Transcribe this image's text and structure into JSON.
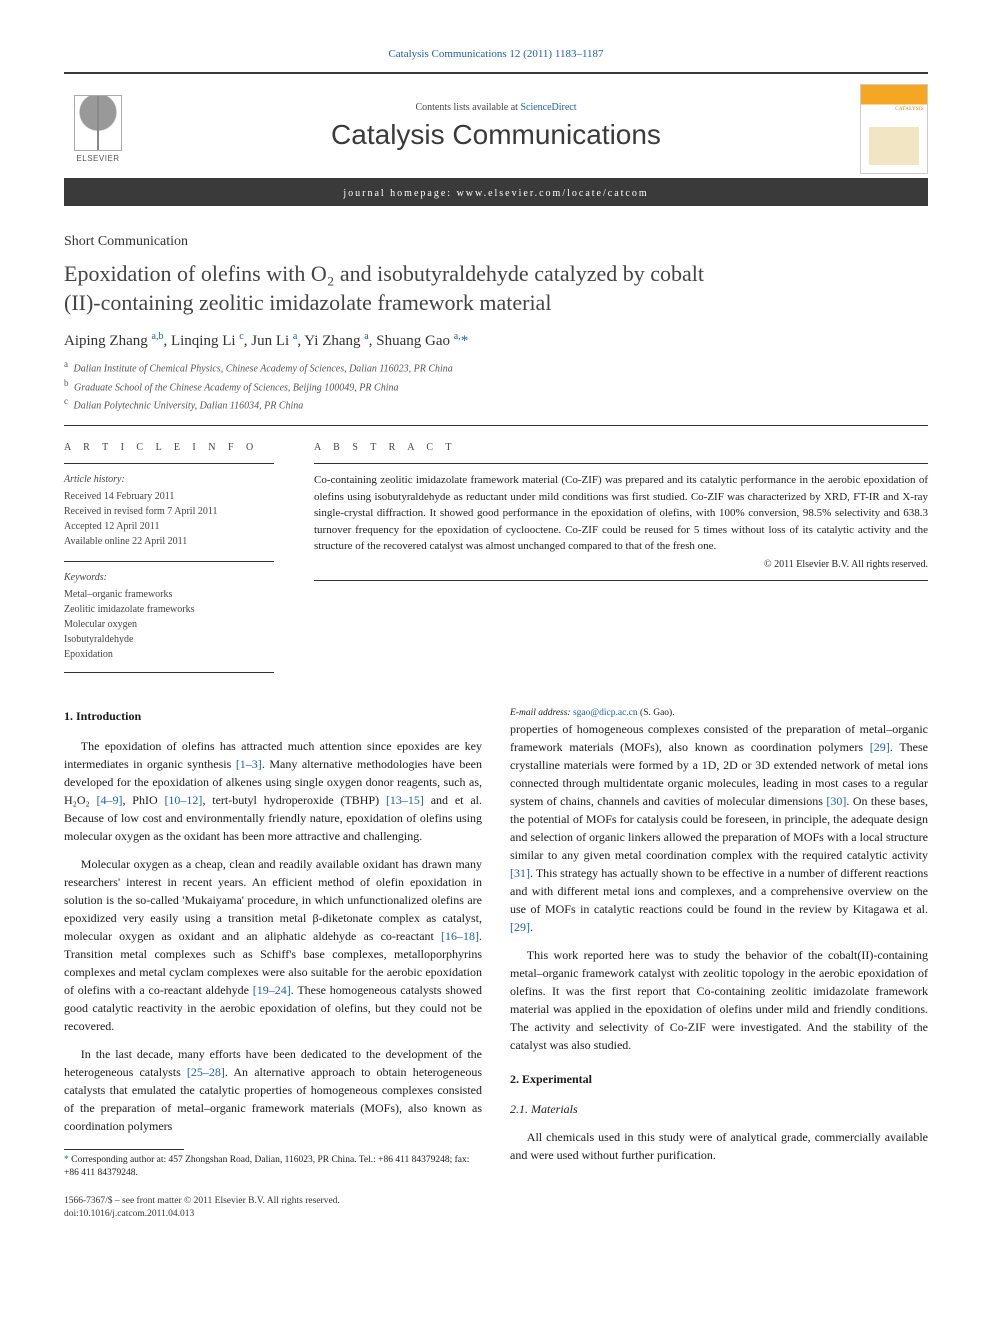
{
  "journal_ref": "Catalysis Communications 12 (2011) 1183–1187",
  "header": {
    "contents_prefix": "Contents lists available at ",
    "contents_link": "ScienceDirect",
    "journal_title": "Catalysis Communications",
    "homepage_prefix": "journal homepage: ",
    "homepage": "www.elsevier.com/locate/catcom",
    "publisher_mark": "ELSEVIER"
  },
  "article": {
    "type": "Short Communication",
    "title_line1": "Epoxidation of olefins with O₂ and isobutyraldehyde catalyzed by cobalt",
    "title_line2": "(II)-containing zeolitic imidazolate framework material",
    "authors_html": "Aiping Zhang <sup>a,b</sup>, Linqing Li <sup>c</sup>, Jun Li <sup>a</sup>, Yi Zhang <sup>a</sup>, Shuang Gao <sup>a,</sup><span class='star'>*</span>",
    "affiliations": [
      {
        "sup": "a",
        "text": "Dalian Institute of Chemical Physics, Chinese Academy of Sciences, Dalian 116023, PR China"
      },
      {
        "sup": "b",
        "text": "Graduate School of the Chinese Academy of Sciences, Beijing 100049, PR China"
      },
      {
        "sup": "c",
        "text": "Dalian Polytechnic University, Dalian 116034, PR China"
      }
    ]
  },
  "info": {
    "heading": "A R T I C L E   I N F O",
    "history_label": "Article history:",
    "history": [
      "Received 14 February 2011",
      "Received in revised form 7 April 2011",
      "Accepted 12 April 2011",
      "Available online 22 April 2011"
    ],
    "keywords_label": "Keywords:",
    "keywords": [
      "Metal–organic frameworks",
      "Zeolitic imidazolate frameworks",
      "Molecular oxygen",
      "Isobutyraldehyde",
      "Epoxidation"
    ]
  },
  "abstract": {
    "heading": "A B S T R A C T",
    "text": "Co-containing zeolitic imidazolate framework material (Co-ZIF) was prepared and its catalytic performance in the aerobic epoxidation of olefins using isobutyraldehyde as reductant under mild conditions was first studied. Co-ZIF was characterized by XRD, FT-IR and X-ray single-crystal diffraction. It showed good performance in the epoxidation of olefins, with 100% conversion, 98.5% selectivity and 638.3 turnover frequency for the epoxidation of cyclooctene. Co-ZIF could be reused for 5 times without loss of its catalytic activity and the structure of the recovered catalyst was almost unchanged compared to that of the fresh one.",
    "copyright": "© 2011 Elsevier B.V. All rights reserved."
  },
  "sections": {
    "intro_heading": "1. Introduction",
    "intro_p1_a": "The epoxidation of olefins has attracted much attention since epoxides are key intermediates in organic synthesis ",
    "intro_p1_ref1": "[1–3]",
    "intro_p1_b": ". Many alternative methodologies have been developed for the epoxidation of alkenes using single oxygen donor reagents, such as, H₂O₂ ",
    "intro_p1_ref2": "[4–9]",
    "intro_p1_c": ", PhIO ",
    "intro_p1_ref3": "[10–12]",
    "intro_p1_d": ", tert-butyl hydroperoxide (TBHP) ",
    "intro_p1_ref4": "[13–15]",
    "intro_p1_e": " and et al. Because of low cost and environmentally friendly nature, epoxidation of olefins using molecular oxygen as the oxidant has been more attractive and challenging.",
    "intro_p2_a": "Molecular oxygen as a cheap, clean and readily available oxidant has drawn many researchers' interest in recent years. An efficient method of olefin epoxidation in solution is the so-called 'Mukaiyama' procedure, in which unfunctionalized olefins are epoxidized very easily using a transition metal β-diketonate complex as catalyst, molecular oxygen as oxidant and an aliphatic aldehyde as co-reactant ",
    "intro_p2_ref1": "[16–18]",
    "intro_p2_b": ". Transition metal complexes such as Schiff's base complexes, metalloporphyrins complexes and metal cyclam complexes were also suitable for the aerobic epoxidation of olefins with a co-reactant aldehyde ",
    "intro_p2_ref2": "[19–24]",
    "intro_p2_c": ". These homogeneous catalysts showed good catalytic reactivity in the aerobic epoxidation of olefins, but they could not be recovered.",
    "intro_p3_a": "In the last decade, many efforts have been dedicated to the development of the heterogeneous catalysts ",
    "intro_p3_ref1": "[25–28]",
    "intro_p3_b": ". An alternative approach to obtain heterogeneous catalysts that emulated the catalytic properties of homogeneous complexes consisted of the preparation of metal–organic framework materials (MOFs), also known as coordination polymers ",
    "intro_p3_ref2": "[29]",
    "intro_p3_c": ". These crystalline materials were formed by a 1D, 2D or 3D extended network of metal ions connected through multidentate organic molecules, leading in most cases to a regular system of chains, channels and cavities of molecular dimensions ",
    "intro_p3_ref3": "[30]",
    "intro_p3_d": ". On these bases, the potential of MOFs for catalysis could be foreseen, in principle, the adequate design and selection of organic linkers allowed the preparation of MOFs with a local structure similar to any given metal coordination complex with the required catalytic activity ",
    "intro_p3_ref4": "[31]",
    "intro_p3_e": ". This strategy has actually shown to be effective in a number of different reactions and with different metal ions and complexes, and a comprehensive overview on the use of MOFs in catalytic reactions could be found in the review by Kitagawa et al. ",
    "intro_p3_ref5": "[29]",
    "intro_p3_f": ".",
    "intro_p4": "This work reported here was to study the behavior of the cobalt(II)-containing metal–organic framework catalyst with zeolitic topology in the aerobic epoxidation of olefins. It was the first report that Co-containing zeolitic imidazolate framework material was applied in the epoxidation of olefins under mild and friendly conditions. The activity and selectivity of Co-ZIF were investigated. And the stability of the catalyst was also studied.",
    "exp_heading": "2. Experimental",
    "materials_heading": "2.1. Materials",
    "materials_p": "All chemicals used in this study were of analytical grade, commercially available and were used without further purification."
  },
  "footnotes": {
    "corr_a": "Corresponding author at: 457 Zhongshan Road, Dalian, 116023, PR China. Tel.: +86 411 84379248; fax: +86 411 84379248.",
    "email_label": "E-mail address: ",
    "email": "sgao@dicp.ac.cn",
    "email_suffix": " (S. Gao)."
  },
  "footer": {
    "issn_line": "1566-7367/$ – see front matter © 2011 Elsevier B.V. All rights reserved.",
    "doi": "doi:10.1016/j.catcom.2011.04.013"
  },
  "colors": {
    "link": "#2060a8",
    "band": "#3a3a3a",
    "text": "#1a1a1a",
    "muted": "#555555",
    "cover_accent": "#f5a623"
  },
  "typography": {
    "body_pt": 12,
    "title_pt": 22,
    "journal_title_pt": 28,
    "small_pt": 10
  }
}
